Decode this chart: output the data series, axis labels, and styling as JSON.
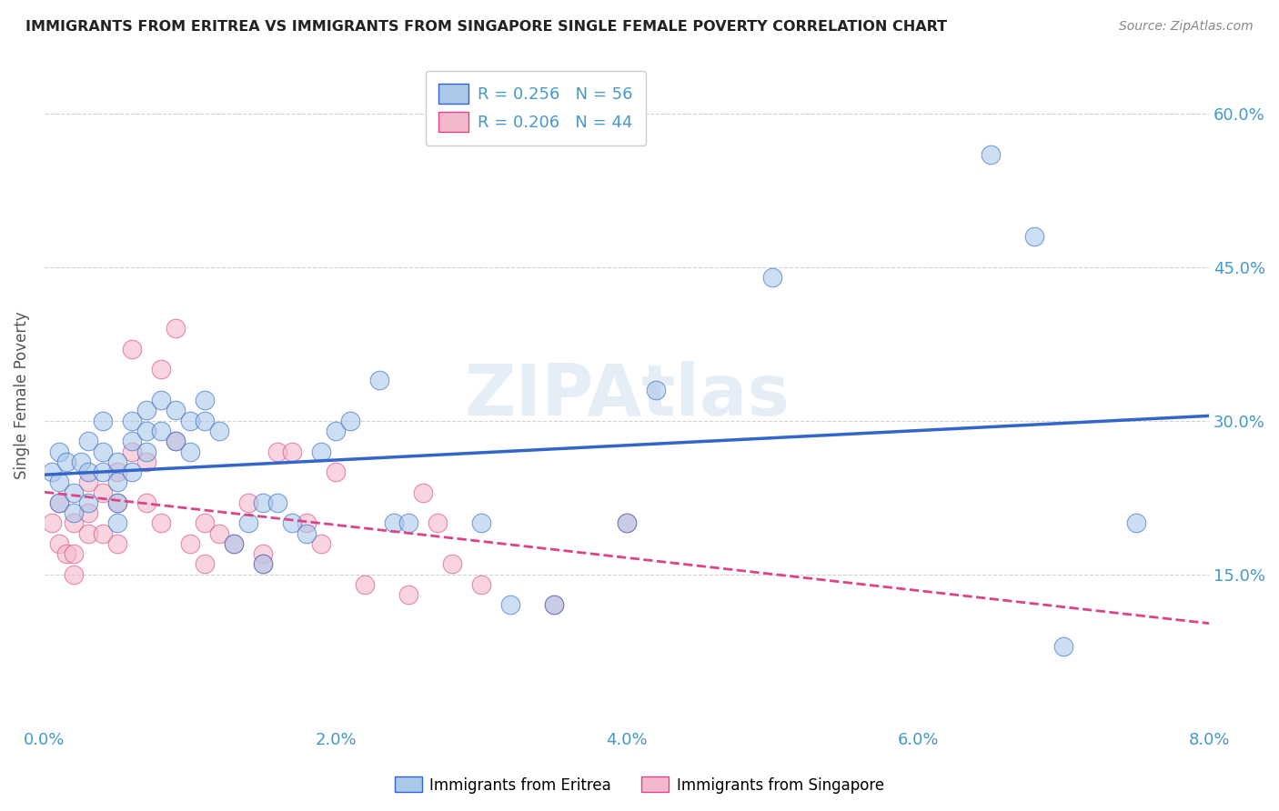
{
  "title": "IMMIGRANTS FROM ERITREA VS IMMIGRANTS FROM SINGAPORE SINGLE FEMALE POVERTY CORRELATION CHART",
  "source": "Source: ZipAtlas.com",
  "ylabel": "Single Female Poverty",
  "legend1_label": "Immigrants from Eritrea",
  "legend2_label": "Immigrants from Singapore",
  "legend1_R": "R = 0.256",
  "legend1_N": "N = 56",
  "legend2_R": "R = 0.206",
  "legend2_N": "N = 44",
  "xmin": 0.0,
  "xmax": 0.08,
  "ymin": 0.0,
  "ymax": 0.65,
  "yticks": [
    0.15,
    0.3,
    0.45,
    0.6
  ],
  "xticks": [
    0.0,
    0.02,
    0.04,
    0.06,
    0.08
  ],
  "color_eritrea": "#aac8e8",
  "color_singapore": "#f4b8cc",
  "color_line_eritrea": "#3366cc",
  "color_line_singapore": "#dd4488",
  "color_axis_labels": "#4499cc",
  "watermark": "ZIPAtlas",
  "blue_scatter_x": [
    0.0005,
    0.001,
    0.001,
    0.001,
    0.0015,
    0.002,
    0.002,
    0.0025,
    0.003,
    0.003,
    0.003,
    0.004,
    0.004,
    0.004,
    0.005,
    0.005,
    0.005,
    0.005,
    0.006,
    0.006,
    0.006,
    0.007,
    0.007,
    0.007,
    0.008,
    0.008,
    0.009,
    0.009,
    0.01,
    0.01,
    0.011,
    0.011,
    0.012,
    0.013,
    0.014,
    0.015,
    0.015,
    0.016,
    0.017,
    0.018,
    0.019,
    0.02,
    0.021,
    0.023,
    0.024,
    0.025,
    0.03,
    0.032,
    0.035,
    0.04,
    0.042,
    0.05,
    0.065,
    0.068,
    0.07,
    0.075
  ],
  "blue_scatter_y": [
    0.25,
    0.27,
    0.24,
    0.22,
    0.26,
    0.23,
    0.21,
    0.26,
    0.25,
    0.28,
    0.22,
    0.25,
    0.3,
    0.27,
    0.24,
    0.22,
    0.26,
    0.2,
    0.28,
    0.25,
    0.3,
    0.27,
    0.31,
    0.29,
    0.29,
    0.32,
    0.28,
    0.31,
    0.3,
    0.27,
    0.32,
    0.3,
    0.29,
    0.18,
    0.2,
    0.22,
    0.16,
    0.22,
    0.2,
    0.19,
    0.27,
    0.29,
    0.3,
    0.34,
    0.2,
    0.2,
    0.2,
    0.12,
    0.12,
    0.2,
    0.33,
    0.44,
    0.56,
    0.48,
    0.08,
    0.2
  ],
  "pink_scatter_x": [
    0.0005,
    0.001,
    0.001,
    0.0015,
    0.002,
    0.002,
    0.002,
    0.003,
    0.003,
    0.003,
    0.004,
    0.004,
    0.005,
    0.005,
    0.005,
    0.006,
    0.006,
    0.007,
    0.007,
    0.008,
    0.008,
    0.009,
    0.009,
    0.01,
    0.011,
    0.011,
    0.012,
    0.013,
    0.014,
    0.015,
    0.015,
    0.016,
    0.017,
    0.018,
    0.019,
    0.02,
    0.022,
    0.025,
    0.026,
    0.027,
    0.028,
    0.03,
    0.035,
    0.04
  ],
  "pink_scatter_y": [
    0.2,
    0.22,
    0.18,
    0.17,
    0.2,
    0.17,
    0.15,
    0.24,
    0.21,
    0.19,
    0.23,
    0.19,
    0.25,
    0.22,
    0.18,
    0.37,
    0.27,
    0.26,
    0.22,
    0.35,
    0.2,
    0.39,
    0.28,
    0.18,
    0.2,
    0.16,
    0.19,
    0.18,
    0.22,
    0.17,
    0.16,
    0.27,
    0.27,
    0.2,
    0.18,
    0.25,
    0.14,
    0.13,
    0.23,
    0.2,
    0.16,
    0.14,
    0.12,
    0.2
  ]
}
